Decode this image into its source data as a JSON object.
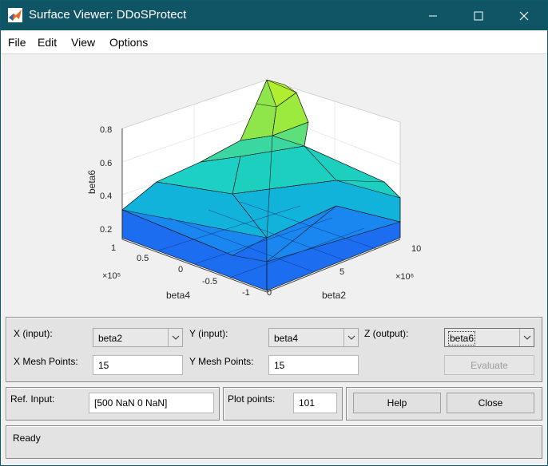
{
  "window": {
    "title": "Surface Viewer: DDoSProtect",
    "icon": "matlab-logo-icon",
    "controls": [
      "minimize-icon",
      "maximize-icon",
      "close-icon"
    ]
  },
  "menu": [
    "File",
    "Edit",
    "View",
    "Options"
  ],
  "plot": {
    "zlabel": "beta6",
    "xlabel": "beta2",
    "ylabel": "beta4",
    "z_ticks": [
      "0.2",
      "0.4",
      "0.6",
      "0.8"
    ],
    "x_ticks": [
      "0",
      "5",
      "10"
    ],
    "x_multiplier": "×10⁶",
    "y_ticks": [
      "-1",
      "-0.5",
      "0",
      "0.5",
      "1"
    ],
    "y_multiplier": "×10⁵",
    "colormap": "parula",
    "grid": true
  },
  "controls": {
    "x_input_label": "X (input):",
    "x_input_value": "beta2",
    "y_input_label": "Y (input):",
    "y_input_value": "beta4",
    "z_output_label": "Z (output):",
    "z_output_value": "beta6",
    "x_mesh_label": "X Mesh Points:",
    "x_mesh_value": "15",
    "y_mesh_label": "Y Mesh Points:",
    "y_mesh_value": "15",
    "evaluate_label": "Evaluate",
    "ref_input_label": "Ref. Input:",
    "ref_input_value": "[500 NaN 0 NaN]",
    "plot_points_label": "Plot points:",
    "plot_points_value": "101",
    "help_label": "Help",
    "close_label": "Close"
  },
  "status": "Ready"
}
